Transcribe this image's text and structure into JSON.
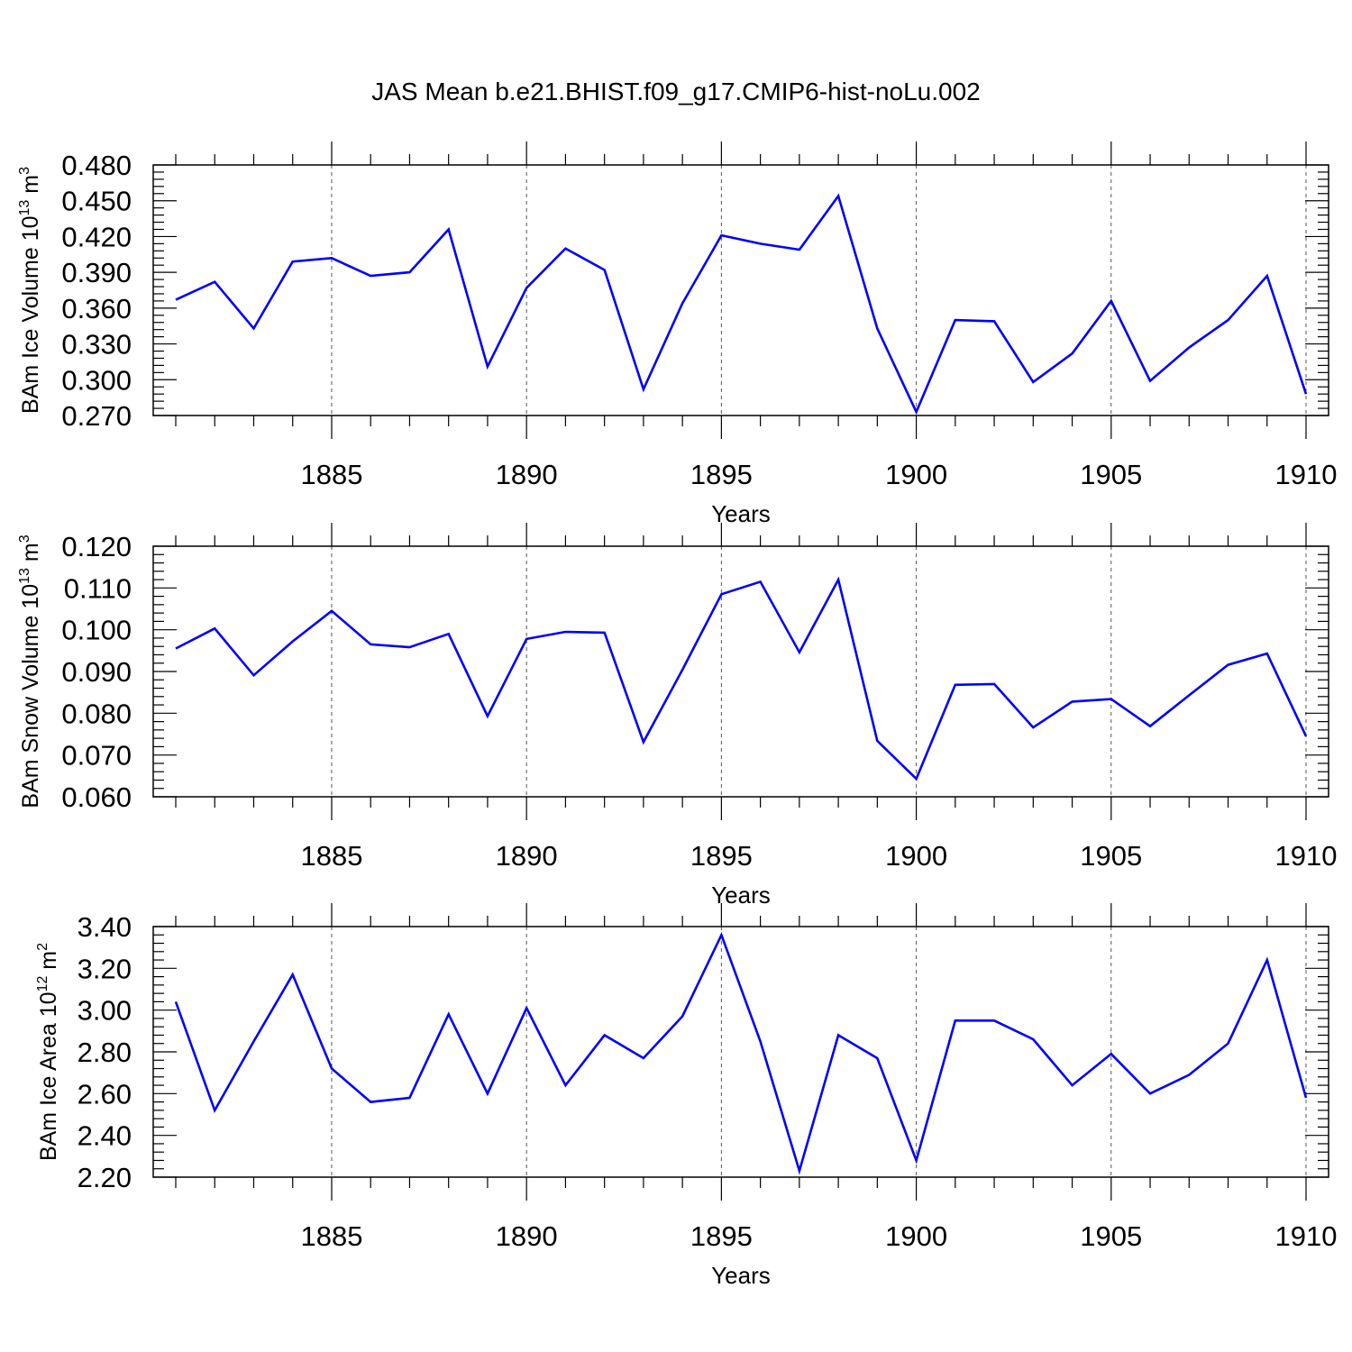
{
  "title": "JAS Mean b.e21.BHIST.f09_g17.CMIP6-hist-noLu.002",
  "colors": {
    "line": "#0000ff",
    "axis": "#000000",
    "grid": "#555555"
  },
  "chart_data": [
    {
      "type": "line",
      "ylabel": "BAm Ice Volume 10",
      "ylabel_exp": "13",
      "ylabel_unit": "m",
      "ylabel_unit_exp": "3",
      "xlabel": "Years",
      "xlim": [
        1881,
        1910
      ],
      "ylim": [
        0.27,
        0.48
      ],
      "yticks": [
        "0.480",
        "0.450",
        "0.420",
        "0.390",
        "0.360",
        "0.330",
        "0.300",
        "0.270"
      ],
      "xticks": [
        "1885",
        "1890",
        "1895",
        "1900",
        "1905",
        "1910"
      ],
      "grid": "vertical dashed at major x ticks",
      "x": [
        1881,
        1882,
        1883,
        1884,
        1885,
        1886,
        1887,
        1888,
        1889,
        1890,
        1891,
        1892,
        1893,
        1894,
        1895,
        1896,
        1897,
        1898,
        1899,
        1900,
        1901,
        1902,
        1903,
        1904,
        1905,
        1906,
        1907,
        1908,
        1909,
        1910
      ],
      "series": [
        {
          "values": [
            0.367,
            0.382,
            0.343,
            0.399,
            0.402,
            0.387,
            0.39,
            0.426,
            0.311,
            0.377,
            0.41,
            0.392,
            0.292,
            0.364,
            0.421,
            0.414,
            0.409,
            0.454,
            0.343,
            0.273,
            0.35,
            0.349,
            0.298,
            0.322,
            0.366,
            0.299,
            0.327,
            0.35,
            0.387,
            0.288
          ]
        }
      ]
    },
    {
      "type": "line",
      "ylabel": "BAm Snow Volume 10",
      "ylabel_exp": "13",
      "ylabel_unit": "m",
      "ylabel_unit_exp": "3",
      "xlabel": "Years",
      "xlim": [
        1881,
        1910
      ],
      "ylim": [
        0.06,
        0.12
      ],
      "yticks": [
        "0.120",
        "0.110",
        "0.100",
        "0.090",
        "0.080",
        "0.070",
        "0.060"
      ],
      "xticks": [
        "1885",
        "1890",
        "1895",
        "1900",
        "1905",
        "1910"
      ],
      "grid": "vertical dashed at major x ticks",
      "x": [
        1881,
        1882,
        1883,
        1884,
        1885,
        1886,
        1887,
        1888,
        1889,
        1890,
        1891,
        1892,
        1893,
        1894,
        1895,
        1896,
        1897,
        1898,
        1899,
        1900,
        1901,
        1902,
        1903,
        1904,
        1905,
        1906,
        1907,
        1908,
        1909,
        1910
      ],
      "series": [
        {
          "values": [
            0.0955,
            0.1003,
            0.0891,
            0.0972,
            0.1045,
            0.0965,
            0.0958,
            0.099,
            0.0793,
            0.0978,
            0.0995,
            0.0993,
            0.0731,
            0.0904,
            0.1085,
            0.1115,
            0.0946,
            0.112,
            0.0734,
            0.0643,
            0.0868,
            0.087,
            0.0766,
            0.0828,
            0.0834,
            0.0769,
            0.0843,
            0.0916,
            0.0943,
            0.0745
          ]
        }
      ]
    },
    {
      "type": "line",
      "ylabel": "BAm Ice Area 10",
      "ylabel_exp": "12",
      "ylabel_unit": "m",
      "ylabel_unit_exp": "2",
      "xlabel": "Years",
      "xlim": [
        1881,
        1910
      ],
      "ylim": [
        2.2,
        3.4
      ],
      "yticks": [
        "3.40",
        "3.20",
        "3.00",
        "2.80",
        "2.60",
        "2.40",
        "2.20"
      ],
      "xticks": [
        "1885",
        "1890",
        "1895",
        "1900",
        "1905",
        "1910"
      ],
      "grid": "vertical dashed at major x ticks",
      "x": [
        1881,
        1882,
        1883,
        1884,
        1885,
        1886,
        1887,
        1888,
        1889,
        1890,
        1891,
        1892,
        1893,
        1894,
        1895,
        1896,
        1897,
        1898,
        1899,
        1900,
        1901,
        1902,
        1903,
        1904,
        1905,
        1906,
        1907,
        1908,
        1909,
        1910
      ],
      "series": [
        {
          "values": [
            3.04,
            2.52,
            2.85,
            3.17,
            2.72,
            2.56,
            2.58,
            2.98,
            2.6,
            3.01,
            2.64,
            2.88,
            2.77,
            2.97,
            3.36,
            2.85,
            2.23,
            2.88,
            2.77,
            2.28,
            2.95,
            2.95,
            2.86,
            2.64,
            2.79,
            2.6,
            2.69,
            2.84,
            3.24,
            2.58
          ]
        }
      ]
    }
  ]
}
